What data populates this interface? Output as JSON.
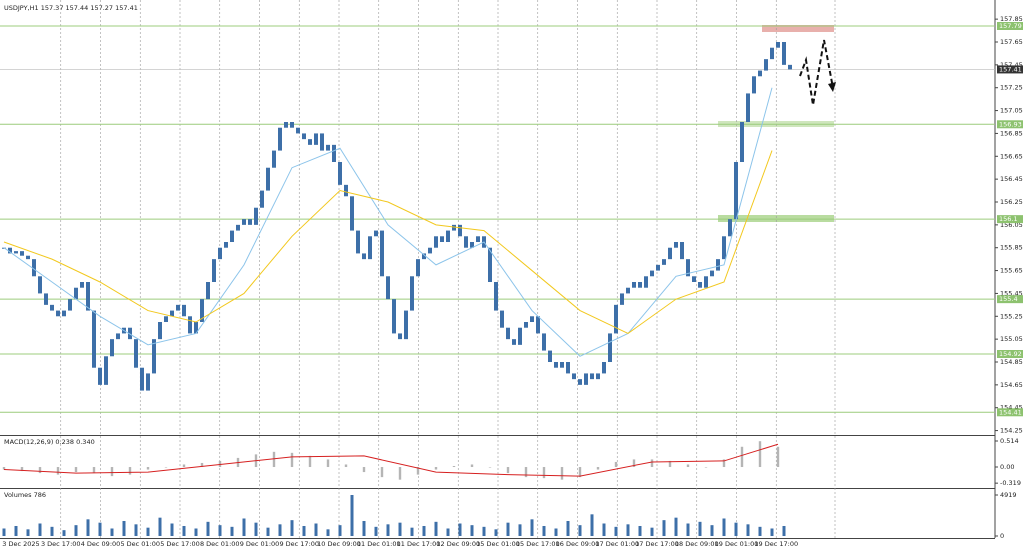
{
  "chart_data": {
    "type": "candlestick",
    "title": "USDJPY,H1  157.37 157.44 157.27 157.41",
    "color": "#3d6fa8",
    "values": [
      155.85,
      155.8,
      155.82,
      155.78,
      155.75,
      155.6,
      155.45,
      155.35,
      155.3,
      155.25,
      155.3,
      155.4,
      155.5,
      155.55,
      155.3,
      154.8,
      154.65,
      154.9,
      155.05,
      155.1,
      155.15,
      155.05,
      154.8,
      154.6,
      154.75,
      155.05,
      155.2,
      155.25,
      155.3,
      155.35,
      155.25,
      155.1,
      155.2,
      155.4,
      155.55,
      155.75,
      155.85,
      155.9,
      156.0,
      156.05,
      156.1,
      156.05,
      156.2,
      156.35,
      156.55,
      156.7,
      156.9,
      156.95,
      156.9,
      156.85,
      156.8,
      156.75,
      156.85,
      156.7,
      156.75,
      156.6,
      156.4,
      156.3,
      156.0,
      155.8,
      155.75,
      155.95,
      156.0,
      155.6,
      155.4,
      155.1,
      155.05,
      155.3,
      155.6,
      155.75,
      155.8,
      155.85,
      155.95,
      155.9,
      156.0,
      156.05,
      155.95,
      155.85,
      155.9,
      155.95,
      155.85,
      155.55,
      155.3,
      155.15,
      155.05,
      155.0,
      155.15,
      155.2,
      155.25,
      155.1,
      154.95,
      154.85,
      154.8,
      154.85,
      154.75,
      154.7,
      154.65,
      154.75,
      154.7,
      154.75,
      154.85,
      155.1,
      155.35,
      155.45,
      155.5,
      155.55,
      155.5,
      155.6,
      155.65,
      155.7,
      155.75,
      155.85,
      155.9,
      155.75,
      155.6,
      155.55,
      155.5,
      155.6,
      155.65,
      155.75,
      155.95,
      156.1,
      156.6,
      156.95,
      157.2,
      157.35,
      157.4,
      157.5,
      157.6,
      157.65,
      157.45,
      157.41
    ],
    "moving_averages": [
      {
        "color": "#8cc4ea",
        "x": [
          0,
          8,
          16,
          24,
          32,
          40,
          48,
          56,
          64,
          72,
          80,
          88,
          96,
          104,
          112,
          120,
          128
        ],
        "values": [
          155.85,
          155.55,
          155.25,
          155.0,
          155.1,
          155.7,
          156.55,
          156.72,
          156.05,
          155.7,
          155.9,
          155.3,
          154.9,
          155.1,
          155.6,
          155.7,
          157.25
        ]
      },
      {
        "color": "#f2c81e",
        "x": [
          0,
          8,
          16,
          24,
          32,
          40,
          48,
          56,
          64,
          72,
          80,
          88,
          96,
          104,
          112,
          120,
          128
        ],
        "values": [
          155.9,
          155.75,
          155.55,
          155.3,
          155.2,
          155.45,
          155.95,
          156.35,
          156.25,
          156.05,
          156.0,
          155.65,
          155.3,
          155.1,
          155.4,
          155.55,
          156.7
        ]
      }
    ],
    "levels": [
      157.79,
      156.93,
      156.1,
      155.4,
      154.92,
      154.41
    ],
    "current_price": 157.41,
    "ylim": [
      154.22,
      158.0
    ],
    "yticks": [
      157.85,
      157.65,
      157.45,
      157.25,
      157.05,
      156.85,
      156.65,
      156.45,
      156.25,
      156.05,
      155.85,
      155.65,
      155.45,
      155.25,
      155.05,
      154.85,
      154.65,
      154.45,
      154.25
    ],
    "x_labels": [
      "3 Dec 2025",
      "3 Dec 17:00",
      "4 Dec 09:00",
      "5 Dec 01:00",
      "5 Dec 17:00",
      "8 Dec 01:00",
      "9 Dec 01:00",
      "9 Dec 17:00",
      "10 Dec 09:00",
      "11 Dec 01:00",
      "11 Dec 17:00",
      "12 Dec 09:00",
      "15 Dec 01:00",
      "15 Dec 17:00",
      "16 Dec 09:00",
      "17 Dec 01:00",
      "17 Dec 17:00",
      "18 Dec 09:00",
      "19 Dec 01:00",
      "19 Dec 17:00"
    ],
    "macd": {
      "label": "MACD(12,26,9) 0.238 0.340",
      "histogram": [
        -0.05,
        -0.08,
        -0.12,
        -0.15,
        -0.1,
        -0.12,
        -0.18,
        -0.15,
        -0.05,
        0.0,
        0.05,
        0.08,
        0.12,
        0.18,
        0.25,
        0.3,
        0.28,
        0.22,
        0.15,
        0.05,
        -0.1,
        -0.2,
        -0.25,
        -0.15,
        -0.05,
        0.02,
        0.05,
        0.0,
        -0.12,
        -0.2,
        -0.22,
        -0.25,
        -0.2,
        -0.05,
        0.1,
        0.15,
        0.15,
        0.12,
        0.05,
        0.0,
        0.15,
        0.4,
        0.51,
        0.4
      ],
      "signal": {
        "color": "#d62020",
        "x": [
          0,
          12,
          24,
          36,
          48,
          60,
          72,
          84,
          96,
          108,
          120,
          129
        ],
        "values": [
          -0.05,
          -0.12,
          -0.1,
          0.05,
          0.2,
          0.22,
          -0.1,
          -0.15,
          -0.18,
          0.1,
          0.12,
          0.45
        ]
      },
      "ylim": [
        -0.395,
        0.593
      ],
      "yticks": [
        0.514,
        {
          "value": 0,
          "label": "0.00"
        },
        -0.319
      ]
    },
    "volumes": {
      "label": "Volumes 786",
      "values": [
        900,
        1200,
        800,
        1500,
        1100,
        700,
        1300,
        2000,
        1600,
        900,
        1800,
        1400,
        1000,
        2200,
        1500,
        1200,
        900,
        1700,
        1300,
        1100,
        2100,
        1600,
        1000,
        1400,
        1900,
        1200,
        1500,
        800,
        1300,
        4919,
        1800,
        1100,
        1400,
        1600,
        1000,
        1200,
        1700,
        900,
        1500,
        1300,
        1100,
        800,
        1600,
        1400,
        2000,
        1200,
        900,
        1800,
        1300,
        2600,
        1500,
        1100,
        1400,
        1200,
        1000,
        1900,
        2200,
        1500,
        1700,
        1300,
        2100,
        1600,
        1400,
        1100,
        900,
        1200
      ],
      "ylim": [
        0,
        4919
      ],
      "yticks": [
        4919,
        0
      ]
    }
  }
}
